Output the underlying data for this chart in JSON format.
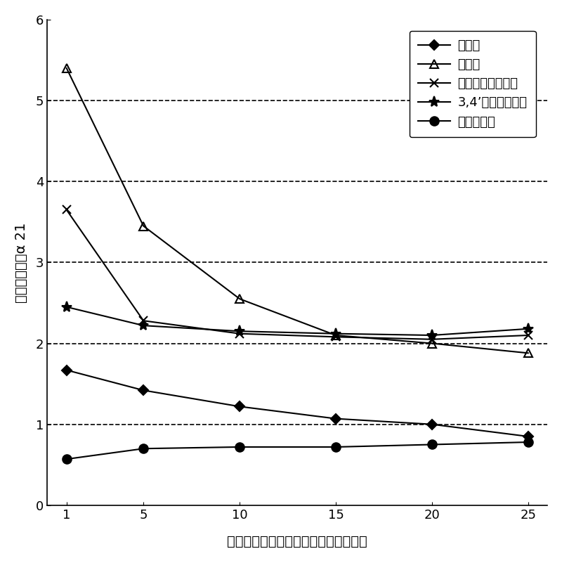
{
  "x": [
    1,
    5,
    10,
    15,
    20,
    25
  ],
  "series": [
    {
      "name": "乙二醇",
      "values": [
        1.67,
        1.42,
        1.22,
        1.07,
        1.0,
        0.85
      ],
      "marker": "D",
      "markersize": 7,
      "color": "#000000",
      "fillstyle": "full",
      "linewidth": 1.5
    },
    {
      "name": "二甘醇",
      "values": [
        5.4,
        3.45,
        2.55,
        2.1,
        2.0,
        1.88
      ],
      "marker": "^",
      "markersize": 9,
      "color": "#000000",
      "fillstyle": "none",
      "linewidth": 1.5
    },
    {
      "name": "对叔丁基邻苯二酚",
      "values": [
        3.65,
        2.28,
        2.12,
        2.08,
        2.05,
        2.1
      ],
      "marker": "x",
      "markersize": 9,
      "color": "#000000",
      "fillstyle": "full",
      "linewidth": 1.5
    },
    {
      "name": "3,4’－二氯二苯醚",
      "values": [
        2.45,
        2.22,
        2.15,
        2.12,
        2.1,
        2.18
      ],
      "marker": "*",
      "markersize": 11,
      "color": "#000000",
      "fillstyle": "full",
      "linewidth": 1.5
    },
    {
      "name": "未加分离剂",
      "values": [
        0.57,
        0.7,
        0.72,
        0.72,
        0.75,
        0.78
      ],
      "marker": "o",
      "markersize": 9,
      "color": "#000000",
      "fillstyle": "full",
      "linewidth": 1.5
    }
  ],
  "xlabel": "吵喷酚对邻苯二酚（分离剂）的质量比",
  "ylabel": "相对挥发度，α 21",
  "ylim": [
    0,
    6
  ],
  "xlim": [
    0,
    26
  ],
  "yticks": [
    0,
    1,
    2,
    3,
    4,
    5,
    6
  ],
  "xticks": [
    1,
    5,
    10,
    15,
    20,
    25
  ],
  "grid_y": [
    1,
    2,
    3,
    4,
    5
  ],
  "background_color": "#ffffff",
  "label_fontsize": 14,
  "tick_fontsize": 13,
  "legend_fontsize": 13
}
